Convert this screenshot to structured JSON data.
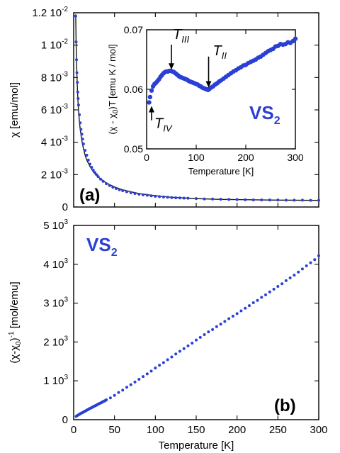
{
  "chart_data": [
    {
      "id": "a",
      "type": "scatter",
      "panel_label": "(a)",
      "material_label": "",
      "ylabel": "χ [emu/mol]",
      "xlim": [
        0,
        300
      ],
      "ylim": [
        0,
        0.012
      ],
      "yticks": [
        {
          "base": "0",
          "exp": ""
        },
        {
          "base": "2 10",
          "exp": "-3"
        },
        {
          "base": "4 10",
          "exp": "-3"
        },
        {
          "base": "6 10",
          "exp": "-3"
        },
        {
          "base": "8 10",
          "exp": "-3"
        },
        {
          "base": "1 10",
          "exp": "-2"
        },
        {
          "base": "1.2 10",
          "exp": "-2"
        }
      ],
      "ytick_values": [
        0,
        0.002,
        0.004,
        0.006,
        0.008,
        0.01,
        0.012
      ],
      "series": [
        {
          "kind": "points",
          "x": [
            2.5,
            3,
            3.5,
            4,
            4.5,
            5,
            5.5,
            6,
            7,
            8,
            9,
            10,
            11,
            12,
            14,
            16,
            18,
            20,
            22,
            24,
            26,
            28,
            30,
            33,
            36,
            40,
            44,
            48,
            52,
            56,
            60,
            65,
            70,
            75,
            80,
            85,
            90,
            95,
            100,
            105,
            110,
            115,
            120,
            125,
            130,
            135,
            140,
            150,
            160,
            170,
            180,
            190,
            200,
            210,
            220,
            230,
            240,
            250,
            260,
            270,
            280,
            290,
            300
          ],
          "y": [
            0.0118,
            0.0102,
            0.0091,
            0.0083,
            0.0077,
            0.0071,
            0.0067,
            0.0063,
            0.0057,
            0.0052,
            0.0048,
            0.0045,
            0.0042,
            0.0039,
            0.0035,
            0.0032,
            0.0029,
            0.00265,
            0.00245,
            0.00228,
            0.00213,
            0.002,
            0.00188,
            0.00172,
            0.00159,
            0.00144,
            0.00132,
            0.00122,
            0.00114,
            0.00107,
            0.00101,
            0.00094,
            0.00088,
            0.00083,
            0.00079,
            0.00075,
            0.00072,
            0.00069,
            0.00066,
            0.00064,
            0.00062,
            0.0006,
            0.00058,
            0.00057,
            0.00056,
            0.00055,
            0.00054,
            0.00052,
            0.0005,
            0.00049,
            0.00048,
            0.00047,
            0.00046,
            0.00045,
            0.00044,
            0.00044,
            0.00043,
            0.00043,
            0.00042,
            0.00042,
            0.00042,
            0.00041,
            0.00041
          ]
        },
        {
          "kind": "fit-line",
          "x": [
            2.5,
            3,
            3.5,
            4,
            5,
            6,
            7,
            8,
            10,
            12,
            14,
            16,
            20,
            25,
            30,
            40,
            50,
            60,
            80,
            100,
            120,
            150,
            180,
            210,
            240,
            270,
            300
          ],
          "y": [
            0.0119,
            0.0102,
            0.009,
            0.0081,
            0.0068,
            0.0059,
            0.0053,
            0.0048,
            0.0041,
            0.0036,
            0.0032,
            0.0029,
            0.0025,
            0.0021,
            0.00185,
            0.00148,
            0.00124,
            0.00106,
            0.00083,
            0.0007,
            0.0006,
            0.00052,
            0.00047,
            0.00045,
            0.00043,
            0.00042,
            0.00041
          ]
        }
      ]
    },
    {
      "id": "inset",
      "type": "scatter",
      "material_label": {
        "base": "VS",
        "sub": "2"
      },
      "xlabel": "Temperature [K]",
      "ylabel": {
        "pre": "(χ - χ",
        "sub": "0",
        "post": ")T [emu K / mol]"
      },
      "xlim": [
        0,
        300
      ],
      "ylim": [
        0.05,
        0.07
      ],
      "xticks": [
        "0",
        "100",
        "200",
        "300"
      ],
      "xtick_values": [
        0,
        100,
        200,
        300
      ],
      "yticks": [
        "0.05",
        "0.06",
        "0.07"
      ],
      "ytick_values": [
        0.05,
        0.06,
        0.07
      ],
      "annotations": [
        {
          "label": "T",
          "sub": "IV",
          "x": 10,
          "y_from": 0.0548,
          "y_to": 0.0572
        },
        {
          "label": "T",
          "sub": "III",
          "x": 50,
          "y_from": 0.0675,
          "y_to": 0.0633
        },
        {
          "label": "T",
          "sub": "II",
          "x": 125,
          "y_from": 0.0655,
          "y_to": 0.0603
        }
      ],
      "series": [
        {
          "kind": "points",
          "x": [
            5,
            7,
            10,
            13,
            16,
            19,
            22,
            25,
            28,
            31,
            34,
            37,
            40,
            43,
            46,
            49,
            52,
            55,
            58,
            61,
            64,
            67,
            70,
            73,
            76,
            79,
            82,
            85,
            88,
            91,
            94,
            97,
            100,
            103,
            106,
            109,
            112,
            115,
            118,
            121,
            124,
            127,
            130,
            134,
            138,
            142,
            146,
            150,
            155,
            160,
            165,
            170,
            175,
            180,
            185,
            190,
            195,
            200,
            205,
            210,
            215,
            220,
            225,
            230,
            235,
            240,
            245,
            250,
            255,
            260,
            265,
            270,
            275,
            280,
            285,
            290,
            295,
            300
          ],
          "y": [
            0.0578,
            0.0587,
            0.0598,
            0.0605,
            0.0609,
            0.0611,
            0.0614,
            0.0617,
            0.0621,
            0.0624,
            0.0627,
            0.0629,
            0.063,
            0.063,
            0.0631,
            0.0631,
            0.063,
            0.0629,
            0.0627,
            0.0625,
            0.0623,
            0.0621,
            0.062,
            0.0619,
            0.0618,
            0.0617,
            0.0616,
            0.0614,
            0.0613,
            0.0612,
            0.0611,
            0.061,
            0.0609,
            0.0608,
            0.0606,
            0.0605,
            0.0603,
            0.0602,
            0.0601,
            0.06,
            0.0599,
            0.0601,
            0.0603,
            0.0605,
            0.0608,
            0.061,
            0.0613,
            0.0615,
            0.0618,
            0.0621,
            0.0624,
            0.0627,
            0.063,
            0.0632,
            0.0635,
            0.0637,
            0.064,
            0.0641,
            0.0644,
            0.0646,
            0.0648,
            0.065,
            0.0653,
            0.0655,
            0.0658,
            0.0661,
            0.0664,
            0.0666,
            0.0668,
            0.0672,
            0.0673,
            0.0676,
            0.0675,
            0.0676,
            0.0679,
            0.0678,
            0.0681,
            0.0685
          ]
        }
      ]
    },
    {
      "id": "b",
      "type": "scatter",
      "panel_label": "(b)",
      "material_label": {
        "base": "VS",
        "sub": "2"
      },
      "xlabel": "Temperature [K]",
      "ylabel": {
        "pre": "(χ-χ",
        "sub": "0",
        "post": ")",
        "sup": "-1",
        "tail": " [mol/emu]"
      },
      "xlim": [
        0,
        300
      ],
      "ylim": [
        0,
        5000
      ],
      "xticks": [
        "0",
        "50",
        "100",
        "150",
        "200",
        "250",
        "300"
      ],
      "xtick_values": [
        0,
        50,
        100,
        150,
        200,
        250,
        300
      ],
      "yticks": [
        {
          "base": "0",
          "exp": ""
        },
        {
          "base": "1 10",
          "exp": "3"
        },
        {
          "base": "2 10",
          "exp": "3"
        },
        {
          "base": "3 10",
          "exp": "3"
        },
        {
          "base": "4 10",
          "exp": "3"
        },
        {
          "base": "5 10",
          "exp": "3"
        }
      ],
      "ytick_values": [
        0,
        1000,
        2000,
        3000,
        4000,
        5000
      ],
      "series": [
        {
          "kind": "points",
          "x": [
            3,
            4,
            5,
            6,
            7,
            8,
            9,
            10,
            11,
            12,
            13,
            14,
            15,
            16,
            17,
            18,
            19,
            20,
            21,
            22,
            23,
            24,
            25,
            26,
            27,
            28,
            29,
            30,
            31,
            32,
            33,
            34,
            35,
            36,
            37,
            38,
            39,
            40,
            45,
            50,
            55,
            60,
            65,
            70,
            75,
            80,
            85,
            90,
            95,
            100,
            105,
            110,
            115,
            120,
            125,
            130,
            135,
            140,
            145,
            150,
            155,
            160,
            165,
            170,
            175,
            180,
            185,
            190,
            195,
            200,
            205,
            210,
            215,
            220,
            225,
            230,
            235,
            240,
            245,
            250,
            255,
            260,
            265,
            270,
            275,
            280,
            285,
            290,
            295,
            300
          ],
          "y": [
            85,
            100,
            115,
            125,
            140,
            150,
            165,
            175,
            185,
            195,
            210,
            220,
            230,
            245,
            255,
            265,
            280,
            290,
            300,
            310,
            320,
            335,
            345,
            355,
            365,
            375,
            390,
            400,
            410,
            420,
            430,
            440,
            455,
            465,
            475,
            485,
            495,
            510,
            560,
            625,
            700,
            760,
            835,
            900,
            970,
            1040,
            1110,
            1180,
            1250,
            1330,
            1400,
            1470,
            1545,
            1615,
            1690,
            1760,
            1830,
            1900,
            1970,
            2050,
            2120,
            2190,
            2260,
            2320,
            2395,
            2460,
            2530,
            2600,
            2665,
            2730,
            2800,
            2870,
            2935,
            3010,
            3070,
            3150,
            3215,
            3290,
            3360,
            3430,
            3500,
            3580,
            3650,
            3720,
            3800,
            3880,
            3960,
            4040,
            4120,
            4220
          ]
        }
      ]
    }
  ]
}
